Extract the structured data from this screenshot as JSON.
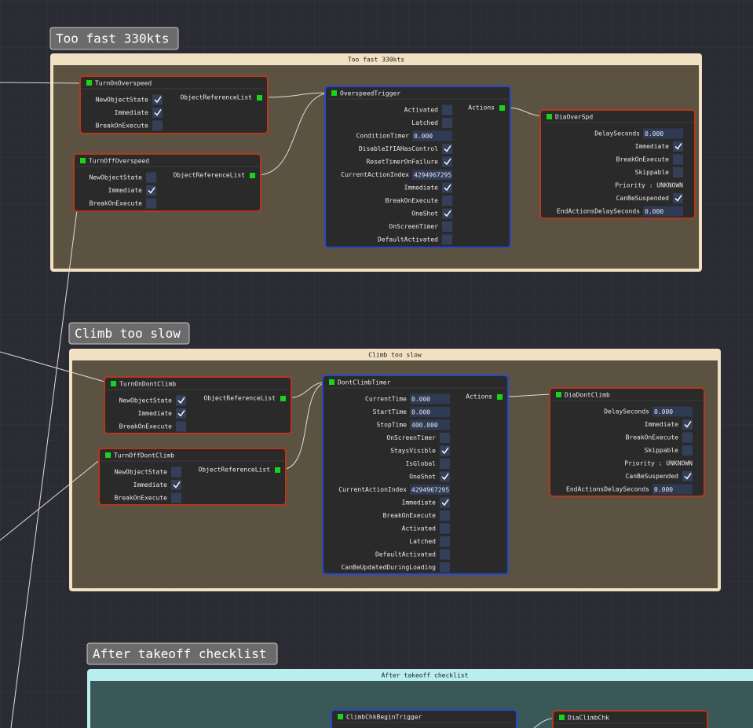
{
  "groups": [
    {
      "tag": "Too fast 330kts",
      "title": "Too fast 330kts",
      "frame_color": "#f1e0c2",
      "body_color": "#5b5242",
      "nodes": [
        {
          "title": "TurnOnOverspeed",
          "border": "#b3391c",
          "output": "ObjectReferenceList",
          "rows": [
            {
              "label": "NewObjectState",
              "checked": true
            },
            {
              "label": "Immediate",
              "checked": true
            },
            {
              "label": "BreakOnExecute",
              "checked": false
            }
          ]
        },
        {
          "title": "TurnOffOverspeed",
          "border": "#b3391c",
          "output": "ObjectReferenceList",
          "rows": [
            {
              "label": "NewObjectState",
              "checked": false
            },
            {
              "label": "Immediate",
              "checked": true
            },
            {
              "label": "BreakOnExecute",
              "checked": false
            }
          ]
        },
        {
          "title": "OverspeedTrigger",
          "border": "#2848c8",
          "output": "Actions",
          "rows": [
            {
              "label": "Activated",
              "checked": false
            },
            {
              "label": "Latched",
              "checked": false
            },
            {
              "label": "ConditionTimer",
              "value": "0.000"
            },
            {
              "label": "DisableIfIAHasControl",
              "checked": true
            },
            {
              "label": "ResetTimerOnFailure",
              "checked": true
            },
            {
              "label": "CurrentActionIndex",
              "value": "4294967295"
            },
            {
              "label": "Immediate",
              "checked": true
            },
            {
              "label": "BreakOnExecute",
              "checked": false
            },
            {
              "label": "OneShot",
              "checked": true
            },
            {
              "label": "OnScreenTimer",
              "checked": false
            },
            {
              "label": "DefaultActivated",
              "checked": false
            }
          ]
        },
        {
          "title": "DiaOverSpd",
          "border": "#b3391c",
          "rows": [
            {
              "label": "DelaySeconds",
              "value": "0.000"
            },
            {
              "label": "Immediate",
              "checked": true
            },
            {
              "label": "BreakOnExecute",
              "checked": false
            },
            {
              "label": "Skippable",
              "checked": false
            },
            {
              "label": "Priority : UNKNOWN"
            },
            {
              "label": "CanBeSuspended",
              "checked": true
            },
            {
              "label": "EndActionsDelaySeconds",
              "value": "0.000"
            }
          ]
        }
      ]
    },
    {
      "tag": "Climb too slow",
      "title": "Climb too slow",
      "frame_color": "#f1e0c2",
      "body_color": "#5b5242",
      "nodes": [
        {
          "title": "TurnOnDontClimb",
          "border": "#b3391c",
          "output": "ObjectReferenceList",
          "rows": [
            {
              "label": "NewObjectState",
              "checked": true
            },
            {
              "label": "Immediate",
              "checked": true
            },
            {
              "label": "BreakOnExecute",
              "checked": false
            }
          ]
        },
        {
          "title": "TurnOffDontClimb",
          "border": "#b3391c",
          "output": "ObjectReferenceList",
          "rows": [
            {
              "label": "NewObjectState",
              "checked": false
            },
            {
              "label": "Immediate",
              "checked": true
            },
            {
              "label": "BreakOnExecute",
              "checked": false
            }
          ]
        },
        {
          "title": "DontClimbTimer",
          "border": "#2848c8",
          "output": "Actions",
          "rows": [
            {
              "label": "CurrentTime",
              "value": "0.000"
            },
            {
              "label": "StartTime",
              "value": "0.000"
            },
            {
              "label": "StopTime",
              "value": "400.000"
            },
            {
              "label": "OnScreenTimer",
              "checked": false
            },
            {
              "label": "StaysVisible",
              "checked": true
            },
            {
              "label": "IsGlobal",
              "checked": false
            },
            {
              "label": "OneShot",
              "checked": true
            },
            {
              "label": "CurrentActionIndex",
              "value": "4294967295"
            },
            {
              "label": "Immediate",
              "checked": true
            },
            {
              "label": "BreakOnExecute",
              "checked": false
            },
            {
              "label": "Activated",
              "checked": false
            },
            {
              "label": "Latched",
              "checked": false
            },
            {
              "label": "DefaultActivated",
              "checked": false
            },
            {
              "label": "CanBeUpdatedDuringLoading",
              "checked": false
            }
          ]
        },
        {
          "title": "DiaDontClimb",
          "border": "#b3391c",
          "rows": [
            {
              "label": "DelaySeconds",
              "value": "0.000"
            },
            {
              "label": "Immediate",
              "checked": true
            },
            {
              "label": "BreakOnExecute",
              "checked": false
            },
            {
              "label": "Skippable",
              "checked": false
            },
            {
              "label": "Priority : UNKNOWN"
            },
            {
              "label": "CanBeSuspended",
              "checked": true
            },
            {
              "label": "EndActionsDelaySeconds",
              "value": "0.000"
            }
          ]
        }
      ]
    },
    {
      "tag": "After takeoff checklist",
      "title": "After takeoff checklist",
      "frame_color": "#b8eeee",
      "body_color": "#3b5858",
      "nodes": [
        {
          "title": "ClimbChkBeginTrigger",
          "border": "#2848c8"
        },
        {
          "title": "DiaClimbChk",
          "border": "#b3391c"
        }
      ]
    }
  ]
}
